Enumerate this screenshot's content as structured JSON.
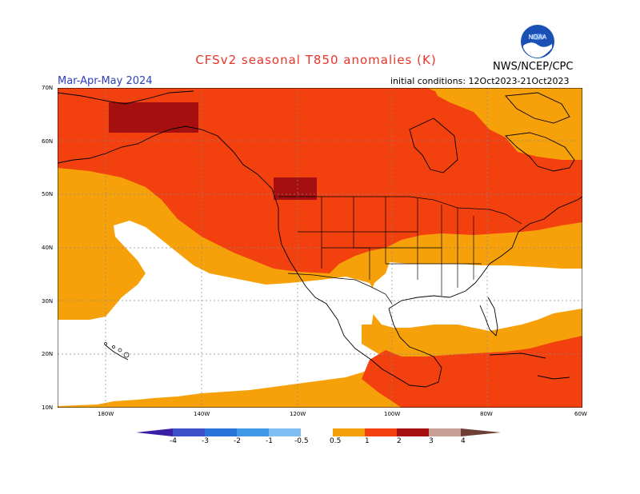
{
  "header": {
    "title": "CFSv2 seasonal T850 anomalies (K)",
    "season": "Mar-Apr-May 2024",
    "initial_conditions": "initial conditions: 12Oct2023-21Oct2023",
    "agency": "NWS/NCEP/CPC",
    "logo_text": "NOAA"
  },
  "map": {
    "lat_labels": [
      "70N",
      "60N",
      "50N",
      "40N",
      "30N",
      "20N",
      "10N"
    ],
    "lon_labels": [
      "180W",
      "140W",
      "120W",
      "100W",
      "80W",
      "60W"
    ],
    "lat_range": [
      10,
      70
    ],
    "lon_range": [
      -190,
      -60
    ],
    "colors": {
      "white": "#ffffff",
      "orange": "#f7a10a",
      "red_orange": "#f2400f",
      "dark_red": "#a50f0f",
      "border": "#000000",
      "grid": "#888888"
    }
  },
  "colorbar": {
    "labels": [
      "-4",
      "-3",
      "-2",
      "-1",
      "-0.5",
      "0.5",
      "1",
      "2",
      "3",
      "4"
    ],
    "colors": [
      "#3a1fa6",
      "#3d4fc9",
      "#2a73d8",
      "#3f99e8",
      "#7fbdf2",
      "#ffffff",
      "#f7a10a",
      "#f2400f",
      "#a50f0f",
      "#c79f95",
      "#6e4035"
    ]
  }
}
